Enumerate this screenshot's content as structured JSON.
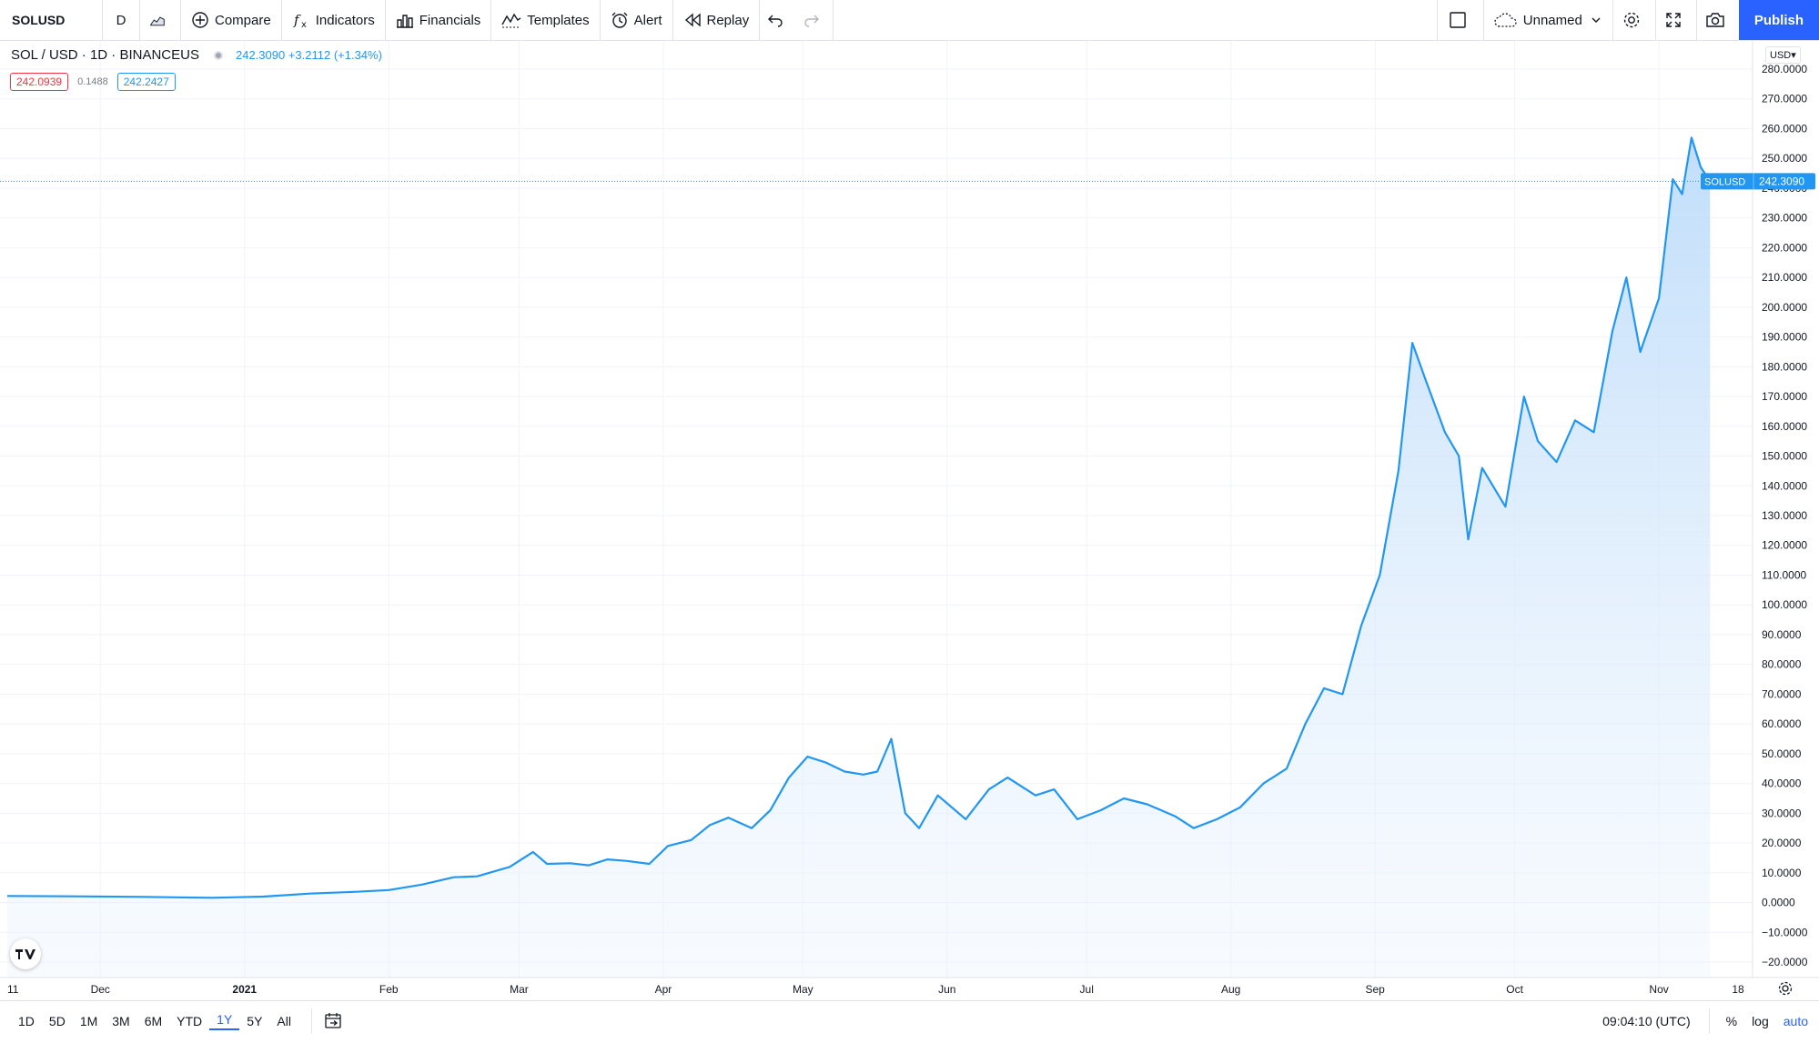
{
  "toolbar": {
    "symbol": "SOLUSD",
    "interval": "D",
    "compare": "Compare",
    "indicators": "Indicators",
    "financials": "Financials",
    "templates": "Templates",
    "alert": "Alert",
    "replay": "Replay",
    "layout_name": "Unnamed",
    "publish": "Publish"
  },
  "legend": {
    "title": "SOL / USD · 1D · BINANCEUS",
    "quote": "242.3090 +3.2112 (+1.34%)",
    "bid": "242.0939",
    "spread": "0.1488",
    "ask": "242.2427"
  },
  "price_axis": {
    "currency": "USD",
    "labels": [
      "280.0000",
      "270.0000",
      "260.0000",
      "250.0000",
      "240.0000",
      "230.0000",
      "220.0000",
      "210.0000",
      "200.0000",
      "190.0000",
      "180.0000",
      "170.0000",
      "160.0000",
      "150.0000",
      "140.0000",
      "130.0000",
      "120.0000",
      "110.0000",
      "100.0000",
      "90.0000",
      "80.0000",
      "70.0000",
      "60.0000",
      "50.0000",
      "40.0000",
      "30.0000",
      "20.0000",
      "10.0000",
      "0.0000",
      "−10.0000",
      "−20.0000"
    ]
  },
  "time_axis": {
    "labels": [
      "11",
      "Dec",
      "2021",
      "Feb",
      "Mar",
      "Apr",
      "May",
      "Jun",
      "Jul",
      "Aug",
      "Sep",
      "Oct",
      "Nov",
      "18"
    ]
  },
  "last_price": {
    "symbol": "SOLUSD",
    "value": "242.3090"
  },
  "colors": {
    "line": "#2196f3",
    "fill_top": "#bddcfa",
    "accent": "#2962ff",
    "down": "#f23645"
  },
  "bottom": {
    "ranges": [
      "1D",
      "5D",
      "1M",
      "3M",
      "6M",
      "YTD",
      "1Y",
      "5Y",
      "All"
    ],
    "active_range": "1Y",
    "clock": "09:04:10 (UTC)",
    "percent": "%",
    "log": "log",
    "auto": "auto"
  },
  "chart_data": {
    "type": "area",
    "ylim": [
      -20,
      280
    ],
    "points": [
      [
        "2020-11-11",
        2.2
      ],
      [
        "2020-11-25",
        2.1
      ],
      [
        "2020-12-10",
        1.9
      ],
      [
        "2020-12-25",
        1.6
      ],
      [
        "2021-01-05",
        2.0
      ],
      [
        "2021-01-15",
        3.0
      ],
      [
        "2021-01-25",
        3.6
      ],
      [
        "2021-02-01",
        4.2
      ],
      [
        "2021-02-08",
        6.0
      ],
      [
        "2021-02-15",
        8.5
      ],
      [
        "2021-02-20",
        8.8
      ],
      [
        "2021-02-27",
        12.0
      ],
      [
        "2021-03-04",
        17.0
      ],
      [
        "2021-03-07",
        13.0
      ],
      [
        "2021-03-12",
        13.2
      ],
      [
        "2021-03-16",
        12.5
      ],
      [
        "2021-03-20",
        14.5
      ],
      [
        "2021-03-24",
        14.0
      ],
      [
        "2021-03-29",
        13.0
      ],
      [
        "2021-04-02",
        19.0
      ],
      [
        "2021-04-07",
        21.0
      ],
      [
        "2021-04-11",
        26.0
      ],
      [
        "2021-04-15",
        28.5
      ],
      [
        "2021-04-20",
        25.0
      ],
      [
        "2021-04-24",
        31.0
      ],
      [
        "2021-04-28",
        42.0
      ],
      [
        "2021-05-02",
        49.0
      ],
      [
        "2021-05-06",
        47.0
      ],
      [
        "2021-05-10",
        44.0
      ],
      [
        "2021-05-14",
        43.0
      ],
      [
        "2021-05-17",
        44.0
      ],
      [
        "2021-05-20",
        55.0
      ],
      [
        "2021-05-23",
        30.0
      ],
      [
        "2021-05-26",
        25.0
      ],
      [
        "2021-05-30",
        36.0
      ],
      [
        "2021-06-05",
        28.0
      ],
      [
        "2021-06-10",
        38.0
      ],
      [
        "2021-06-14",
        42.0
      ],
      [
        "2021-06-20",
        36.0
      ],
      [
        "2021-06-24",
        38.0
      ],
      [
        "2021-06-29",
        28.0
      ],
      [
        "2021-07-04",
        31.0
      ],
      [
        "2021-07-09",
        35.0
      ],
      [
        "2021-07-14",
        33.0
      ],
      [
        "2021-07-20",
        29.0
      ],
      [
        "2021-07-24",
        25.0
      ],
      [
        "2021-07-29",
        28.0
      ],
      [
        "2021-08-03",
        32.0
      ],
      [
        "2021-08-08",
        40.0
      ],
      [
        "2021-08-13",
        45.0
      ],
      [
        "2021-08-17",
        60.0
      ],
      [
        "2021-08-21",
        72.0
      ],
      [
        "2021-08-25",
        70.0
      ],
      [
        "2021-08-29",
        93.0
      ],
      [
        "2021-09-02",
        110.0
      ],
      [
        "2021-09-06",
        145.0
      ],
      [
        "2021-09-09",
        188.0
      ],
      [
        "2021-09-12",
        175.0
      ],
      [
        "2021-09-16",
        158.0
      ],
      [
        "2021-09-19",
        150.0
      ],
      [
        "2021-09-21",
        122.0
      ],
      [
        "2021-09-24",
        146.0
      ],
      [
        "2021-09-29",
        133.0
      ],
      [
        "2021-10-03",
        170.0
      ],
      [
        "2021-10-06",
        155.0
      ],
      [
        "2021-10-10",
        148.0
      ],
      [
        "2021-10-14",
        162.0
      ],
      [
        "2021-10-18",
        158.0
      ],
      [
        "2021-10-22",
        192.0
      ],
      [
        "2021-10-25",
        210.0
      ],
      [
        "2021-10-28",
        185.0
      ],
      [
        "2021-11-01",
        203.0
      ],
      [
        "2021-11-04",
        243.0
      ],
      [
        "2021-11-06",
        238.0
      ],
      [
        "2021-11-08",
        257.0
      ],
      [
        "2021-11-10",
        247.0
      ],
      [
        "2021-11-12",
        242.3
      ]
    ]
  }
}
